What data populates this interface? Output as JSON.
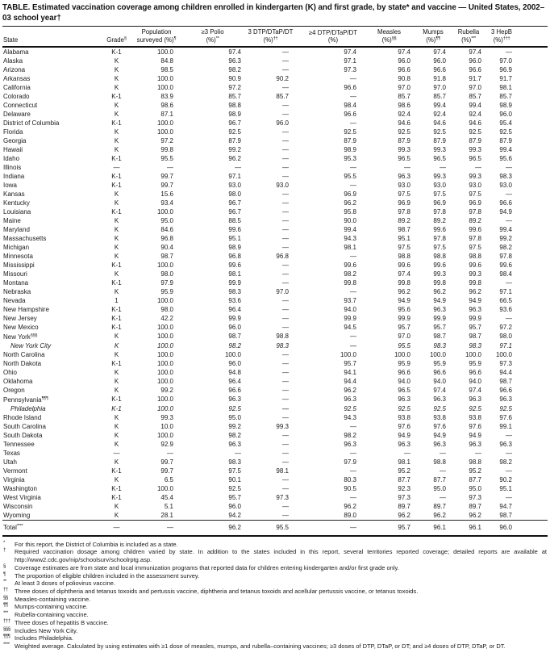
{
  "title": "TABLE. Estimated vaccination coverage among children enrolled in kindergarten (K) and first grade, by state* and vaccine — United States, 2002–03 school year†",
  "table": {
    "columns": [
      {
        "id": "state",
        "line1": "",
        "line2": "State",
        "sup": ""
      },
      {
        "id": "grade",
        "line1": "",
        "line2": "Grade",
        "sup": "§"
      },
      {
        "id": "population",
        "line1": "Population",
        "line2": "surveyed (%)",
        "sup": "¶"
      },
      {
        "id": "polio3",
        "line1": "≥3 Polio",
        "line2": "(%)",
        "sup": "**"
      },
      {
        "id": "dtp3",
        "line1": "3 DTP/DTaP/DT",
        "line2": "(%)",
        "sup": "††"
      },
      {
        "id": "dtp4",
        "line1": "≥4 DTP/DTaP/DT",
        "line2": "(%)",
        "sup": ""
      },
      {
        "id": "measles",
        "line1": "Measles",
        "line2": "(%)",
        "sup": "§§"
      },
      {
        "id": "mumps",
        "line1": "Mumps",
        "line2": "(%)",
        "sup": "¶¶"
      },
      {
        "id": "rubella",
        "line1": "Rubella",
        "line2": "(%)",
        "sup": "***"
      },
      {
        "id": "hepb",
        "line1": "3 HepB",
        "line2": "(%)",
        "sup": "†††"
      }
    ],
    "rows": [
      {
        "state": "Alabama",
        "sup": "",
        "italic": false,
        "grade": "K-1",
        "values": [
          "100.0",
          "97.4",
          "—",
          "97.4",
          "97.4",
          "97.4",
          "97.4",
          "—"
        ]
      },
      {
        "state": "Alaska",
        "sup": "",
        "italic": false,
        "grade": "K",
        "values": [
          "84.8",
          "96.3",
          "—",
          "97.1",
          "96.0",
          "96.0",
          "96.0",
          "97.0"
        ]
      },
      {
        "state": "Arizona",
        "sup": "",
        "italic": false,
        "grade": "K",
        "values": [
          "98.5",
          "98.2",
          "—",
          "97.3",
          "96.6",
          "96.6",
          "96.6",
          "96.9"
        ]
      },
      {
        "state": "Arkansas",
        "sup": "",
        "italic": false,
        "grade": "K",
        "values": [
          "100.0",
          "90.9",
          "90.2",
          "—",
          "90.8",
          "91.8",
          "91.7",
          "91.7"
        ]
      },
      {
        "state": "California",
        "sup": "",
        "italic": false,
        "grade": "K",
        "values": [
          "100.0",
          "97.2",
          "—",
          "96.6",
          "97.0",
          "97.0",
          "97.0",
          "98.1"
        ]
      },
      {
        "state": "Colorado",
        "sup": "",
        "italic": false,
        "grade": "K-1",
        "values": [
          "83.9",
          "85.7",
          "85.7",
          "—",
          "85.7",
          "85.7",
          "85.7",
          "85.7"
        ]
      },
      {
        "state": "Connecticut",
        "sup": "",
        "italic": false,
        "grade": "K",
        "values": [
          "98.6",
          "98.8",
          "—",
          "98.4",
          "98.6",
          "99.4",
          "99.4",
          "98.9"
        ]
      },
      {
        "state": "Delaware",
        "sup": "",
        "italic": false,
        "grade": "K",
        "values": [
          "87.1",
          "98.9",
          "—",
          "96.6",
          "92.4",
          "92.4",
          "92.4",
          "96.0"
        ]
      },
      {
        "state": "District of Columbia",
        "sup": "",
        "italic": false,
        "grade": "K-1",
        "values": [
          "100.0",
          "96.7",
          "96.0",
          "—",
          "94.6",
          "94.6",
          "94.6",
          "95.4"
        ]
      },
      {
        "state": "Florida",
        "sup": "",
        "italic": false,
        "grade": "K",
        "values": [
          "100.0",
          "92.5",
          "—",
          "92.5",
          "92.5",
          "92.5",
          "92.5",
          "92.5"
        ]
      },
      {
        "state": "Georgia",
        "sup": "",
        "italic": false,
        "grade": "K",
        "values": [
          "97.2",
          "87.9",
          "—",
          "87.9",
          "87.9",
          "87.9",
          "87.9",
          "87.9"
        ]
      },
      {
        "state": "Hawaii",
        "sup": "",
        "italic": false,
        "grade": "K",
        "values": [
          "99.8",
          "99.2",
          "—",
          "98.9",
          "99.3",
          "99.3",
          "99.3",
          "99.4"
        ]
      },
      {
        "state": "Idaho",
        "sup": "",
        "italic": false,
        "grade": "K-1",
        "values": [
          "95.5",
          "96.2",
          "—",
          "95.3",
          "96.5",
          "96.5",
          "96.5",
          "95.6"
        ]
      },
      {
        "state": "Illinois",
        "sup": "",
        "italic": false,
        "grade": "—",
        "values": [
          "—",
          "—",
          "—",
          "—",
          "—",
          "—",
          "—",
          "—"
        ]
      },
      {
        "state": "Indiana",
        "sup": "",
        "italic": false,
        "grade": "K-1",
        "values": [
          "99.7",
          "97.1",
          "—",
          "95.5",
          "96.3",
          "99.3",
          "99.3",
          "98.3"
        ]
      },
      {
        "state": "Iowa",
        "sup": "",
        "italic": false,
        "grade": "K-1",
        "values": [
          "99.7",
          "93.0",
          "93.0",
          "—",
          "93.0",
          "93.0",
          "93.0",
          "93.0"
        ]
      },
      {
        "state": "Kansas",
        "sup": "",
        "italic": false,
        "grade": "K",
        "values": [
          "15.6",
          "98.0",
          "—",
          "96.9",
          "97.5",
          "97.5",
          "97.5",
          "—"
        ]
      },
      {
        "state": "Kentucky",
        "sup": "",
        "italic": false,
        "grade": "K",
        "values": [
          "93.4",
          "96.7",
          "—",
          "96.2",
          "96.9",
          "96.9",
          "96.9",
          "96.6"
        ]
      },
      {
        "state": "Louisiana",
        "sup": "",
        "italic": false,
        "grade": "K-1",
        "values": [
          "100.0",
          "96.7",
          "—",
          "95.8",
          "97.8",
          "97.8",
          "97.8",
          "94.9"
        ]
      },
      {
        "state": "Maine",
        "sup": "",
        "italic": false,
        "grade": "K",
        "values": [
          "95.0",
          "88.5",
          "—",
          "90.0",
          "89.2",
          "89.2",
          "89.2",
          "—"
        ]
      },
      {
        "state": "Maryland",
        "sup": "",
        "italic": false,
        "grade": "K",
        "values": [
          "84.6",
          "99.6",
          "—",
          "99.4",
          "98.7",
          "99.6",
          "99.6",
          "99.4"
        ]
      },
      {
        "state": "Massachusetts",
        "sup": "",
        "italic": false,
        "grade": "K",
        "values": [
          "96.8",
          "95.1",
          "—",
          "94.3",
          "95.1",
          "97.8",
          "97.8",
          "99.2"
        ]
      },
      {
        "state": "Michigan",
        "sup": "",
        "italic": false,
        "grade": "K",
        "values": [
          "90.4",
          "98.9",
          "—",
          "98.1",
          "97.5",
          "97.5",
          "97.5",
          "98.2"
        ]
      },
      {
        "state": "Minnesota",
        "sup": "",
        "italic": false,
        "grade": "K",
        "values": [
          "98.7",
          "96.8",
          "96.8",
          "—",
          "98.8",
          "98.8",
          "98.8",
          "97.8"
        ]
      },
      {
        "state": "Mississippi",
        "sup": "",
        "italic": false,
        "grade": "K-1",
        "values": [
          "100.0",
          "99.6",
          "—",
          "99.6",
          "99.6",
          "99.6",
          "99.6",
          "99.6"
        ]
      },
      {
        "state": "Missouri",
        "sup": "",
        "italic": false,
        "grade": "K",
        "values": [
          "98.0",
          "98.1",
          "—",
          "98.2",
          "97.4",
          "99.3",
          "99.3",
          "98.4"
        ]
      },
      {
        "state": "Montana",
        "sup": "",
        "italic": false,
        "grade": "K-1",
        "values": [
          "97.9",
          "99.9",
          "—",
          "99.8",
          "99.8",
          "99.8",
          "99.8",
          "—"
        ]
      },
      {
        "state": "Nebraska",
        "sup": "",
        "italic": false,
        "grade": "K",
        "values": [
          "95.9",
          "98.3",
          "97.0",
          "—",
          "96.2",
          "96.2",
          "96.2",
          "97.1"
        ]
      },
      {
        "state": "Nevada",
        "sup": "",
        "italic": false,
        "grade": "1",
        "values": [
          "100.0",
          "93.6",
          "—",
          "93.7",
          "94.9",
          "94.9",
          "94.9",
          "66.5"
        ]
      },
      {
        "state": "New Hampshire",
        "sup": "",
        "italic": false,
        "grade": "K-1",
        "values": [
          "98.0",
          "96.4",
          "—",
          "94.0",
          "95.6",
          "96.3",
          "96.3",
          "93.6"
        ]
      },
      {
        "state": "New Jersey",
        "sup": "",
        "italic": false,
        "grade": "K-1",
        "values": [
          "42.2",
          "99.9",
          "—",
          "99.9",
          "99.9",
          "99.9",
          "99.9",
          "—"
        ]
      },
      {
        "state": "New Mexico",
        "sup": "",
        "italic": false,
        "grade": "K-1",
        "values": [
          "100.0",
          "96.0",
          "—",
          "94.5",
          "95.7",
          "95.7",
          "95.7",
          "97.2"
        ]
      },
      {
        "state": "New York",
        "sup": "§§§",
        "italic": false,
        "grade": "K",
        "values": [
          "100.0",
          "98.7",
          "98.8",
          "—",
          "97.0",
          "98.7",
          "98.7",
          "98.0"
        ]
      },
      {
        "state": "New York City",
        "sup": "",
        "italic": true,
        "grade": "K",
        "values": [
          "100.0",
          "98.2",
          "98.3",
          "—",
          "95.5",
          "98.3",
          "98.3",
          "97.1"
        ]
      },
      {
        "state": "North Carolina",
        "sup": "",
        "italic": false,
        "grade": "K",
        "values": [
          "100.0",
          "100.0",
          "—",
          "100.0",
          "100.0",
          "100.0",
          "100.0",
          "100.0"
        ]
      },
      {
        "state": "North Dakota",
        "sup": "",
        "italic": false,
        "grade": "K-1",
        "values": [
          "100.0",
          "96.0",
          "—",
          "95.7",
          "95.9",
          "95.9",
          "95.9",
          "97.3"
        ]
      },
      {
        "state": "Ohio",
        "sup": "",
        "italic": false,
        "grade": "K",
        "values": [
          "100.0",
          "94.8",
          "—",
          "94.1",
          "96.6",
          "96.6",
          "96.6",
          "94.4"
        ]
      },
      {
        "state": "Oklahoma",
        "sup": "",
        "italic": false,
        "grade": "K",
        "values": [
          "100.0",
          "96.4",
          "—",
          "94.4",
          "94.0",
          "94.0",
          "94.0",
          "98.7"
        ]
      },
      {
        "state": "Oregon",
        "sup": "",
        "italic": false,
        "grade": "K",
        "values": [
          "99.2",
          "96.6",
          "—",
          "96.2",
          "96.5",
          "97.4",
          "97.4",
          "96.6"
        ]
      },
      {
        "state": "Pennsylvania",
        "sup": "¶¶¶",
        "italic": false,
        "grade": "K-1",
        "values": [
          "100.0",
          "96.3",
          "—",
          "96.3",
          "96.3",
          "96.3",
          "96.3",
          "96.3"
        ]
      },
      {
        "state": "Philadelphia",
        "sup": "",
        "italic": true,
        "grade": "K-1",
        "values": [
          "100.0",
          "92.5",
          "—",
          "92.5",
          "92.5",
          "92.5",
          "92.5",
          "92.5"
        ]
      },
      {
        "state": "Rhode Island",
        "sup": "",
        "italic": false,
        "grade": "K",
        "values": [
          "99.3",
          "95.0",
          "—",
          "94.3",
          "93.8",
          "93.8",
          "93.8",
          "97.6"
        ]
      },
      {
        "state": "South Carolina",
        "sup": "",
        "italic": false,
        "grade": "K",
        "values": [
          "10.0",
          "99.2",
          "99.3",
          "—",
          "97.6",
          "97.6",
          "97.6",
          "99.1"
        ]
      },
      {
        "state": "South Dakota",
        "sup": "",
        "italic": false,
        "grade": "K",
        "values": [
          "100.0",
          "98.2",
          "—",
          "98.2",
          "94.9",
          "94.9",
          "94.9",
          "—"
        ]
      },
      {
        "state": "Tennessee",
        "sup": "",
        "italic": false,
        "grade": "K",
        "values": [
          "92.9",
          "96.3",
          "—",
          "96.3",
          "96.3",
          "96.3",
          "96.3",
          "96.3"
        ]
      },
      {
        "state": "Texas",
        "sup": "",
        "italic": false,
        "grade": "—",
        "values": [
          "—",
          "—",
          "—",
          "—",
          "—",
          "—",
          "—",
          "—"
        ]
      },
      {
        "state": "Utah",
        "sup": "",
        "italic": false,
        "grade": "K",
        "values": [
          "99.7",
          "98.3",
          "—",
          "97.9",
          "98.1",
          "98.8",
          "98.8",
          "98.2"
        ]
      },
      {
        "state": "Vermont",
        "sup": "",
        "italic": false,
        "grade": "K-1",
        "values": [
          "99.7",
          "97.5",
          "98.1",
          "—",
          "95.2",
          "—",
          "95.2",
          "—"
        ]
      },
      {
        "state": "Virginia",
        "sup": "",
        "italic": false,
        "grade": "K",
        "values": [
          "6.5",
          "90.1",
          "—",
          "80.3",
          "87.7",
          "87.7",
          "87.7",
          "90.2"
        ]
      },
      {
        "state": "Washington",
        "sup": "",
        "italic": false,
        "grade": "K-1",
        "values": [
          "100.0",
          "92.5",
          "—",
          "90.5",
          "92.3",
          "95.0",
          "95.0",
          "95.1"
        ]
      },
      {
        "state": "West Virginia",
        "sup": "",
        "italic": false,
        "grade": "K-1",
        "values": [
          "45.4",
          "95.7",
          "97.3",
          "—",
          "97.3",
          "—",
          "97.3",
          "—"
        ]
      },
      {
        "state": "Wisconsin",
        "sup": "",
        "italic": false,
        "grade": "K",
        "values": [
          "5.1",
          "96.0",
          "—",
          "96.2",
          "89.7",
          "89.7",
          "89.7",
          "94.7"
        ]
      },
      {
        "state": "Wyoming",
        "sup": "",
        "italic": false,
        "grade": "K",
        "values": [
          "28.1",
          "94.2",
          "—",
          "89.0",
          "96.2",
          "96.2",
          "96.2",
          "98.7"
        ]
      }
    ],
    "total_row": {
      "state": "Total",
      "sup": "****",
      "italic": false,
      "grade": "—",
      "values": [
        "—",
        "96.2",
        "95.5",
        "—",
        "95.7",
        "96.1",
        "96.1",
        "96.0"
      ]
    }
  },
  "footnotes": [
    {
      "marker": "*",
      "text": "For this report, the District of Columbia is included as a state."
    },
    {
      "marker": "†",
      "text": "Required vaccination dosage among children varied by state. In addition to the states included in this report, several territories reported coverage; detailed reports are available at http://www2.cdc.gov/nip/schoolsurv/schoolrptg.asp."
    },
    {
      "marker": "§",
      "text": "Coverage estimates are from state and local immunization programs that reported data for children entering kindergarten and/or first grade only."
    },
    {
      "marker": "¶",
      "text": "The proportion of eligible children included in the assessment survey."
    },
    {
      "marker": "**",
      "text": "At least 3 doses of poliovirus vaccine."
    },
    {
      "marker": "††",
      "text": "Three doses of diphtheria and tetanus toxoids and pertussis vaccine, diphtheria and tetanus toxoids and acellular pertussis vaccine, or tetanus toxoids."
    },
    {
      "marker": "§§",
      "text": "Measles-containing vaccine."
    },
    {
      "marker": "¶¶",
      "text": "Mumps-containing vaccine."
    },
    {
      "marker": "***",
      "text": "Rubella-containing vaccine."
    },
    {
      "marker": "†††",
      "text": "Three doses of hepatitis B vaccine."
    },
    {
      "marker": "§§§",
      "text": "Includes New York City."
    },
    {
      "marker": "¶¶¶",
      "text": "Includes Philadelphia."
    },
    {
      "marker": "****",
      "text": "Weighted average. Calculated by using estimates with ≥1 dose of measles, mumps, and rubella–containing vaccines; ≥3 doses of DTP, DTaP, or DT; and ≥4 doses of DTP, DTaP, or DT."
    }
  ]
}
